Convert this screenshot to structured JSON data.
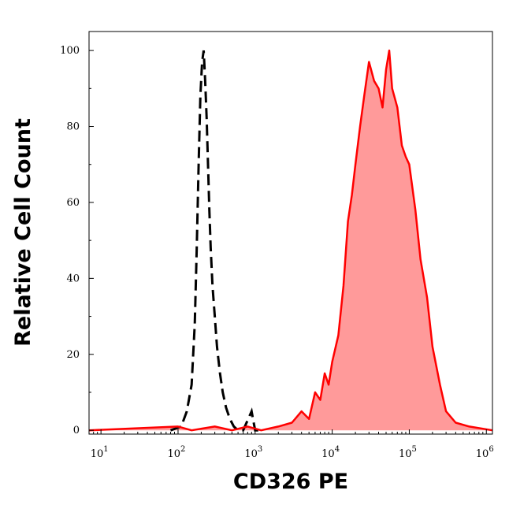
{
  "chart_data": {
    "type": "area",
    "xlabel": "CD326 PE",
    "ylabel": "Relative Cell Count",
    "x_scale": "log",
    "xlim": [
      7,
      1200000
    ],
    "ylim": [
      -1,
      105
    ],
    "x_ticks": [
      {
        "value": 10,
        "base": "10",
        "exp": "1"
      },
      {
        "value": 100,
        "base": "10",
        "exp": "2"
      },
      {
        "value": 1000,
        "base": "10",
        "exp": "3"
      },
      {
        "value": 10000,
        "base": "10",
        "exp": "4"
      },
      {
        "value": 100000,
        "base": "10",
        "exp": "5"
      },
      {
        "value": 1000000,
        "base": "10",
        "exp": "6"
      }
    ],
    "y_ticks": [
      0,
      20,
      40,
      60,
      80,
      100
    ],
    "grid": false,
    "legend": "none",
    "colors": {
      "stained_line": "#ff0000",
      "stained_fill": "#ff9a9a",
      "control_line": "#000000"
    },
    "series": [
      {
        "style": "dashed-black",
        "x": [
          80,
          110,
          130,
          150,
          165,
          175,
          185,
          195,
          205,
          215,
          225,
          235,
          245,
          255,
          265,
          280,
          300,
          320,
          350,
          380,
          420,
          470,
          530,
          600,
          700,
          900,
          1000,
          1200
        ],
        "y": [
          0,
          1,
          5,
          12,
          28,
          48,
          70,
          88,
          97,
          100,
          92,
          82,
          70,
          58,
          48,
          38,
          30,
          22,
          15,
          10,
          6,
          3,
          1,
          0,
          0,
          5,
          0,
          0
        ]
      },
      {
        "style": "red-filled",
        "x": [
          7,
          100,
          150,
          300,
          500,
          800,
          1200,
          2000,
          3000,
          4000,
          5000,
          6000,
          7000,
          8000,
          9000,
          10000,
          12000,
          14000,
          16000,
          18000,
          20000,
          23000,
          26000,
          30000,
          35000,
          40000,
          45000,
          50000,
          55000,
          60000,
          70000,
          80000,
          90000,
          100000,
          120000,
          140000,
          170000,
          200000,
          250000,
          300000,
          400000,
          600000,
          1200000
        ],
        "y": [
          0,
          1,
          0,
          1,
          0,
          1,
          0,
          1,
          2,
          5,
          3,
          10,
          8,
          15,
          12,
          18,
          25,
          38,
          55,
          62,
          70,
          80,
          88,
          97,
          92,
          90,
          85,
          95,
          100,
          90,
          85,
          75,
          72,
          70,
          58,
          45,
          35,
          22,
          12,
          5,
          2,
          1,
          0
        ]
      }
    ]
  }
}
